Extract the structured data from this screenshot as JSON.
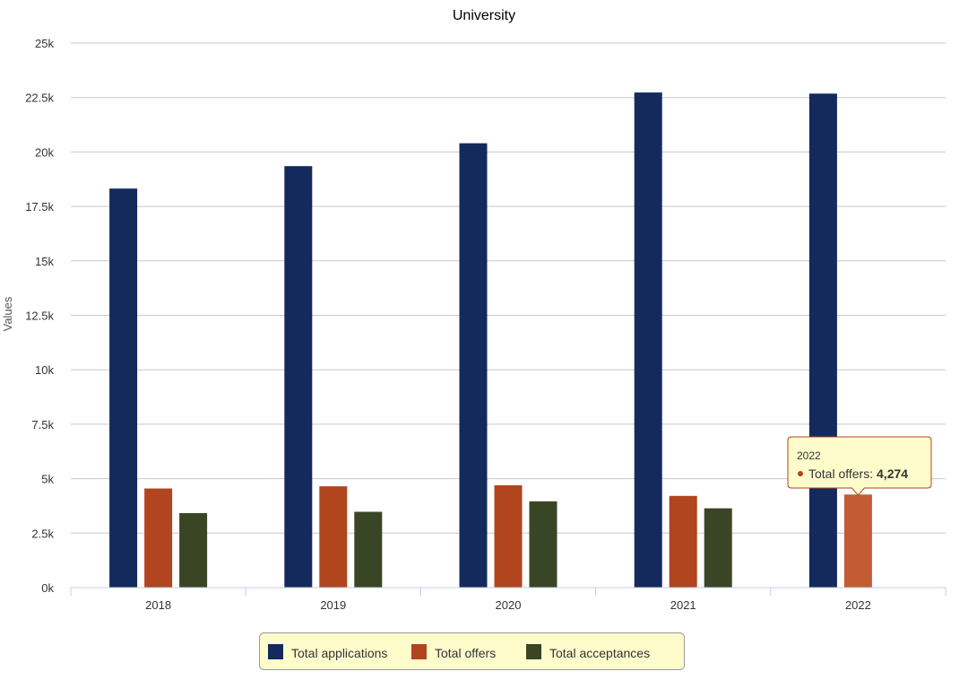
{
  "chart_data": {
    "type": "bar",
    "title": "University",
    "xlabel": "",
    "ylabel": "Values",
    "categories": [
      "2018",
      "2019",
      "2020",
      "2021",
      "2022"
    ],
    "ylim": [
      0,
      25000
    ],
    "yticks": [
      0,
      2500,
      5000,
      7500,
      10000,
      12500,
      15000,
      17500,
      20000,
      22500,
      25000
    ],
    "ytick_labels": [
      "0k",
      "2.5k",
      "5k",
      "7.5k",
      "10k",
      "12.5k",
      "15k",
      "17.5k",
      "20k",
      "22.5k",
      "25k"
    ],
    "grid": true,
    "legend_position": "bottom-center",
    "series": [
      {
        "name": "Total applications",
        "color": "#142a5c",
        "values": [
          18320,
          19350,
          20400,
          22730,
          22680
        ]
      },
      {
        "name": "Total offers",
        "color": "#b0451e",
        "values": [
          4550,
          4650,
          4700,
          4210,
          4274
        ]
      },
      {
        "name": "Total acceptances",
        "color": "#3a4526",
        "values": [
          3420,
          3480,
          3960,
          3640,
          null
        ]
      }
    ]
  },
  "tooltip": {
    "title": "2022",
    "series_label": "Total offers:",
    "value": "4,274",
    "series_index": 1,
    "category_index": 4,
    "highlight_color": "#c45c33",
    "background": "#fffccc",
    "border": "#b0451e"
  },
  "legend_background": "#fffccc",
  "legend_border": "#999999"
}
